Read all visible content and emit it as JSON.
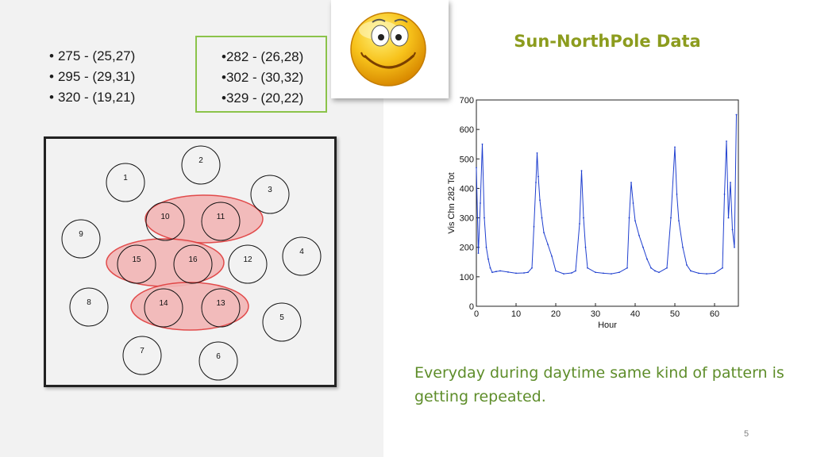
{
  "bullets_left": [
    "275 - (25,27)",
    "295 - (29,31)",
    "320 - (19,21)"
  ],
  "bullets_boxed": [
    "282 - (26,28)",
    "302 - (30,32)",
    "329 - (20,22)"
  ],
  "diagram": {
    "nodes": [
      "1",
      "2",
      "3",
      "4",
      "5",
      "6",
      "7",
      "8",
      "9",
      "10",
      "11",
      "12",
      "13",
      "14",
      "15",
      "16"
    ]
  },
  "title": "Sun-NorthPole Data",
  "caption": "Everyday during daytime same kind of pattern is getting repeated.",
  "page_number": "5",
  "colors": {
    "title": "#8c9c1e",
    "caption": "#5e8d2a",
    "series": "#1f3fcf",
    "highlight_fill": "#f2b6b6",
    "highlight_stroke": "#e03a3a",
    "box_border": "#8bc34a"
  },
  "chart_data": {
    "type": "line",
    "xlabel": "Hour",
    "ylabel": "Vis Chn 282 Tot",
    "xlim": [
      0,
      66
    ],
    "ylim": [
      0,
      700
    ],
    "xticks": [
      0,
      10,
      20,
      30,
      40,
      50,
      60
    ],
    "yticks": [
      0,
      100,
      200,
      300,
      400,
      500,
      600,
      700
    ],
    "grid": false,
    "series": [
      {
        "x": [
          0,
          0.5,
          1,
          1.5,
          2,
          2.5,
          3,
          3.5,
          4,
          5,
          6,
          8,
          10,
          12,
          13,
          14,
          14.5,
          15,
          15.3,
          15.6,
          16,
          16.5,
          17,
          18,
          19,
          20,
          22,
          24,
          25,
          26,
          26.5,
          27,
          27.5,
          28,
          30,
          32,
          34,
          36,
          38,
          38.5,
          39,
          39.5,
          40,
          41,
          42,
          43,
          44,
          45,
          46,
          48,
          49,
          50,
          50.5,
          51,
          52,
          53,
          54,
          56,
          58,
          60,
          62,
          62.5,
          63,
          63.5,
          64,
          64.5,
          65,
          65.5
        ],
        "values": [
          470,
          180,
          350,
          550,
          300,
          200,
          160,
          130,
          115,
          118,
          120,
          116,
          112,
          113,
          115,
          130,
          270,
          420,
          520,
          440,
          360,
          300,
          250,
          210,
          170,
          120,
          110,
          113,
          120,
          280,
          460,
          300,
          200,
          130,
          115,
          112,
          110,
          115,
          130,
          300,
          420,
          350,
          290,
          240,
          200,
          160,
          130,
          120,
          115,
          130,
          300,
          540,
          380,
          290,
          200,
          140,
          120,
          112,
          110,
          112,
          130,
          380,
          560,
          300,
          420,
          260,
          200,
          650
        ]
      }
    ]
  }
}
